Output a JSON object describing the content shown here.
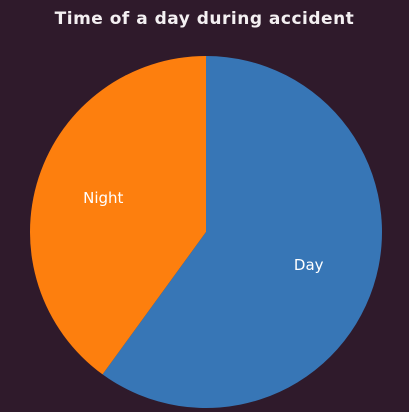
{
  "chart_data": {
    "type": "pie",
    "title": "Time of a day during accident",
    "categories": [
      "Day",
      "Night"
    ],
    "values": [
      60,
      40
    ],
    "colors": [
      "#3776b6",
      "#fd7f0e"
    ],
    "start_angle_deg": 0,
    "direction": "clockwise",
    "legend": "none"
  },
  "colors": {
    "background": "#2f1a2b",
    "title_text": "#f4f0f2",
    "slice_label_text": "#ffffff"
  }
}
